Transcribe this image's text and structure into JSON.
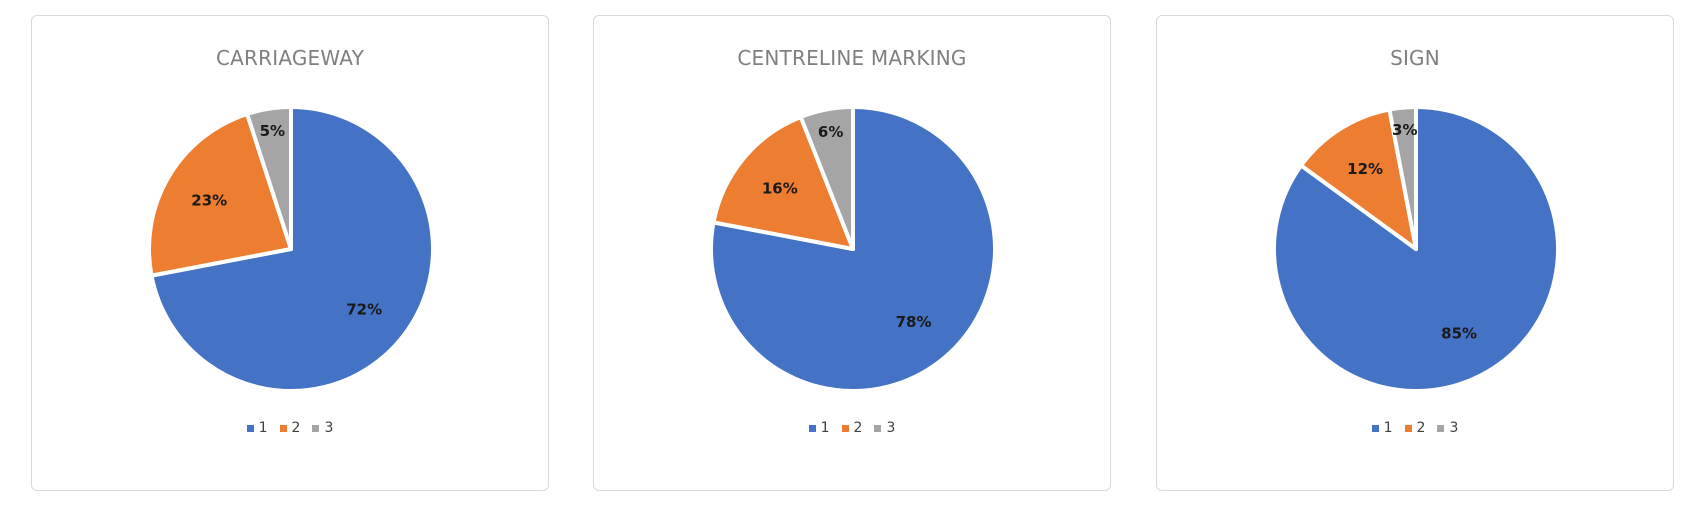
{
  "colors": {
    "1": "#4472c4",
    "2": "#ed7d31",
    "3": "#a5a5a5"
  },
  "chart_data": [
    {
      "type": "pie",
      "title": "CARRIAGEWAY",
      "categories": [
        "1",
        "2",
        "3"
      ],
      "values": [
        72,
        23,
        5
      ],
      "labels": [
        "72%",
        "23%",
        "5%"
      ],
      "legend": [
        "1",
        "2",
        "3"
      ],
      "legend_position": "bottom"
    },
    {
      "type": "pie",
      "title": "CENTRELINE MARKING",
      "categories": [
        "1",
        "2",
        "3"
      ],
      "values": [
        78,
        16,
        6
      ],
      "labels": [
        "78%",
        "16%",
        "6%"
      ],
      "legend": [
        "1",
        "2",
        "3"
      ],
      "legend_position": "bottom"
    },
    {
      "type": "pie",
      "title": "SIGN",
      "categories": [
        "1",
        "2",
        "3"
      ],
      "values": [
        85,
        12,
        3
      ],
      "labels": [
        "85%",
        "12%",
        "3%"
      ],
      "legend": [
        "1",
        "2",
        "3"
      ],
      "legend_position": "bottom"
    }
  ]
}
